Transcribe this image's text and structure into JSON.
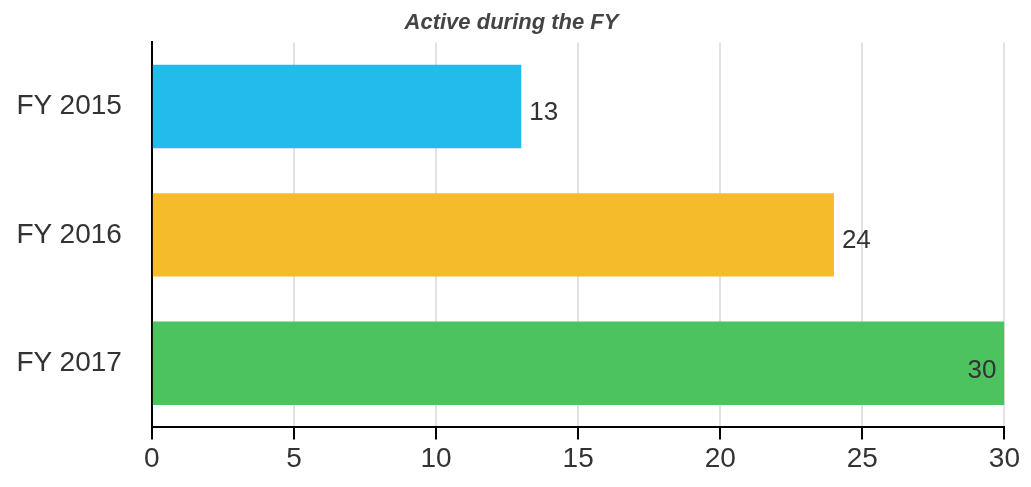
{
  "chart_data": {
    "type": "bar",
    "orientation": "horizontal",
    "title": "Active during the FY",
    "categories": [
      "FY 2015",
      "FY 2016",
      "FY 2017"
    ],
    "values": [
      13,
      24,
      30
    ],
    "colors": [
      "#22bbea",
      "#f6bb2a",
      "#4cc35e"
    ],
    "xlim": [
      0,
      30
    ],
    "xticks": [
      0,
      5,
      10,
      15,
      20,
      25,
      30
    ],
    "grid": "x",
    "data_labels": true,
    "legend": false
  }
}
